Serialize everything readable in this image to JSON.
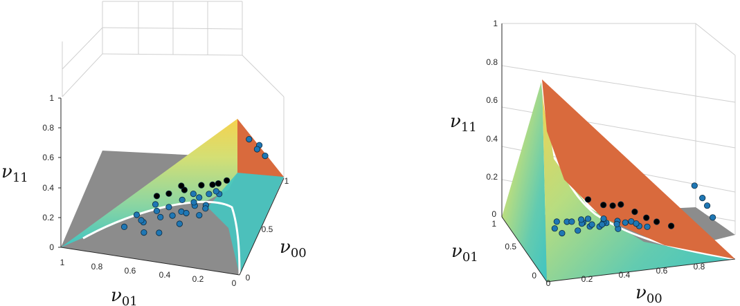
{
  "chart_data": [
    {
      "type": "scatter",
      "panel": "left",
      "view": "3d",
      "title": "",
      "axes": {
        "x": {
          "label_main": "ν",
          "label_sub": "00",
          "ticks": [
            "0",
            "0.5",
            "1"
          ],
          "range": [
            0,
            1
          ]
        },
        "y": {
          "label_main": "ν",
          "label_sub": "01",
          "ticks": [
            "1",
            "0.8",
            "0.6",
            "0.4",
            "0.2",
            "0"
          ],
          "range": [
            0,
            1
          ]
        },
        "z": {
          "label_main": "ν",
          "label_sub": "11",
          "ticks": [
            "0",
            "0.2",
            "0.4",
            "0.6",
            "0.8",
            "1"
          ],
          "range": [
            0,
            1
          ]
        }
      },
      "surfaces": [
        {
          "name": "gray-plane",
          "color": "#8c8c8c"
        },
        {
          "name": "orange-plane",
          "color": "#d96a3d"
        },
        {
          "name": "parula-surface",
          "colormap": [
            "#3fc4c2",
            "#7fd4a0",
            "#cfe07a",
            "#f3d452"
          ]
        }
      ],
      "series": [
        {
          "color": "#1f77b4",
          "points": [
            [
              0.3,
              0.45,
              0.12
            ],
            [
              0.35,
              0.55,
              0.1
            ],
            [
              0.25,
              0.6,
              0.08
            ],
            [
              0.4,
              0.35,
              0.14
            ],
            [
              0.45,
              0.3,
              0.12
            ],
            [
              0.2,
              0.5,
              0.06
            ],
            [
              0.3,
              0.3,
              0.15
            ],
            [
              0.38,
              0.42,
              0.1
            ],
            [
              0.5,
              0.35,
              0.13
            ],
            [
              0.55,
              0.25,
              0.14
            ],
            [
              0.28,
              0.62,
              0.07
            ],
            [
              0.42,
              0.5,
              0.09
            ],
            [
              0.33,
              0.38,
              0.13
            ],
            [
              0.48,
              0.44,
              0.11
            ],
            [
              0.22,
              0.7,
              0.05
            ],
            [
              0.36,
              0.28,
              0.16
            ],
            [
              0.52,
              0.3,
              0.15
            ],
            [
              0.26,
              0.4,
              0.1
            ],
            [
              0.44,
              0.58,
              0.08
            ],
            [
              0.6,
              0.28,
              0.12
            ],
            [
              0.31,
              0.52,
              0.09
            ],
            [
              0.46,
              0.37,
              0.12
            ],
            [
              0.18,
              0.58,
              0.06
            ],
            [
              0.57,
              0.4,
              0.1
            ],
            [
              0.34,
              0.66,
              0.06
            ],
            [
              0.85,
              0.1,
              0.3
            ],
            [
              0.88,
              0.12,
              0.25
            ],
            [
              0.82,
              0.15,
              0.35
            ],
            [
              0.9,
              0.08,
              0.2
            ]
          ]
        },
        {
          "color": "#000000",
          "points": [
            [
              0.42,
              0.5,
              0.18
            ],
            [
              0.45,
              0.42,
              0.2
            ],
            [
              0.55,
              0.35,
              0.18
            ],
            [
              0.6,
              0.3,
              0.16
            ],
            [
              0.5,
              0.45,
              0.19
            ],
            [
              0.65,
              0.28,
              0.14
            ],
            [
              0.72,
              0.25,
              0.12
            ],
            [
              0.35,
              0.55,
              0.2
            ]
          ]
        }
      ]
    },
    {
      "type": "scatter",
      "panel": "right",
      "view": "3d",
      "title": "",
      "axes": {
        "x": {
          "label_main": "ν",
          "label_sub": "00",
          "ticks": [
            "0",
            "0.2",
            "0.4",
            "0.6",
            "0.8"
          ],
          "range": [
            0,
            1
          ]
        },
        "y": {
          "label_main": "ν",
          "label_sub": "01",
          "ticks": [
            "0",
            "0.5",
            "1"
          ],
          "range": [
            0,
            1
          ]
        },
        "z": {
          "label_main": "ν",
          "label_sub": "11",
          "ticks": [
            "0",
            "0.2",
            "0.4",
            "0.6",
            "0.8",
            "1"
          ],
          "range": [
            0,
            1
          ]
        }
      },
      "surfaces": [
        {
          "name": "gray-plane",
          "color": "#8c8c8c"
        },
        {
          "name": "orange-plane",
          "color": "#d96a3d"
        },
        {
          "name": "parula-surface",
          "colormap": [
            "#3fc4c2",
            "#7fd4a0",
            "#cfe07a",
            "#f3d452"
          ]
        }
      ],
      "series": [
        {
          "color": "#1f77b4",
          "points": [
            [
              0.3,
              0.45,
              0.12
            ],
            [
              0.35,
              0.55,
              0.1
            ],
            [
              0.25,
              0.6,
              0.08
            ],
            [
              0.4,
              0.35,
              0.14
            ],
            [
              0.45,
              0.3,
              0.12
            ],
            [
              0.2,
              0.5,
              0.06
            ],
            [
              0.3,
              0.3,
              0.15
            ],
            [
              0.38,
              0.42,
              0.1
            ],
            [
              0.5,
              0.35,
              0.13
            ],
            [
              0.55,
              0.25,
              0.14
            ],
            [
              0.28,
              0.62,
              0.07
            ],
            [
              0.42,
              0.5,
              0.09
            ],
            [
              0.33,
              0.38,
              0.13
            ],
            [
              0.48,
              0.44,
              0.11
            ],
            [
              0.22,
              0.7,
              0.05
            ],
            [
              0.36,
              0.28,
              0.16
            ],
            [
              0.52,
              0.3,
              0.15
            ],
            [
              0.26,
              0.4,
              0.1
            ],
            [
              0.44,
              0.58,
              0.08
            ],
            [
              0.6,
              0.28,
              0.12
            ],
            [
              0.31,
              0.52,
              0.09
            ],
            [
              0.46,
              0.37,
              0.12
            ],
            [
              0.18,
              0.58,
              0.06
            ],
            [
              0.57,
              0.4,
              0.1
            ],
            [
              0.34,
              0.66,
              0.06
            ],
            [
              0.85,
              0.1,
              0.3
            ],
            [
              0.88,
              0.12,
              0.25
            ],
            [
              0.82,
              0.15,
              0.35
            ],
            [
              0.9,
              0.08,
              0.2
            ]
          ]
        },
        {
          "color": "#000000",
          "points": [
            [
              0.42,
              0.5,
              0.18
            ],
            [
              0.45,
              0.42,
              0.2
            ],
            [
              0.55,
              0.35,
              0.18
            ],
            [
              0.6,
              0.3,
              0.16
            ],
            [
              0.5,
              0.45,
              0.19
            ],
            [
              0.65,
              0.28,
              0.14
            ],
            [
              0.72,
              0.25,
              0.12
            ],
            [
              0.35,
              0.55,
              0.2
            ]
          ]
        }
      ]
    }
  ]
}
